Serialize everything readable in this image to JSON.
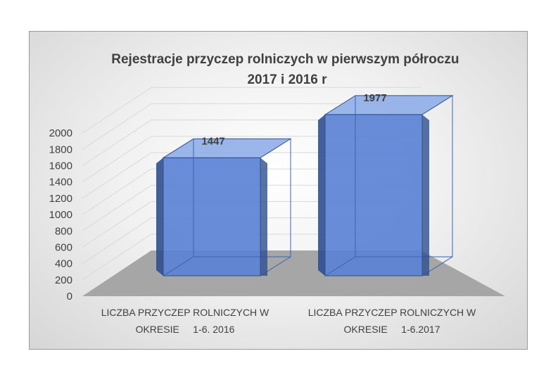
{
  "chart_data": {
    "type": "bar",
    "title_lines": [
      "Rejestracje przyczep rolniczych w pierwszym półroczu",
      "2017 i 2016 r"
    ],
    "categories": [
      [
        "LICZBA PRZYCZEP ROLNICZYCH W",
        "OKRESIE     1-6. 2016"
      ],
      [
        "LICZBA PRZYCZEP ROLNICZYCH W",
        "OKRESIE     1-6.2017"
      ]
    ],
    "values": [
      1447,
      1977
    ],
    "data_labels": [
      "1447",
      "1977"
    ],
    "yticks": [
      "0",
      "200",
      "400",
      "600",
      "800",
      "1000",
      "1200",
      "1400",
      "1600",
      "1800",
      "2000"
    ],
    "ylim": [
      0,
      2000
    ],
    "three_d": true,
    "grid": true,
    "legend": "none",
    "colors": {
      "bar_front": "#5b82d4",
      "bar_side": "#2f4f8f",
      "bar_top": "#8aa9e6",
      "floor": "#a6a6a6",
      "grid": "#d9d9d9"
    }
  }
}
